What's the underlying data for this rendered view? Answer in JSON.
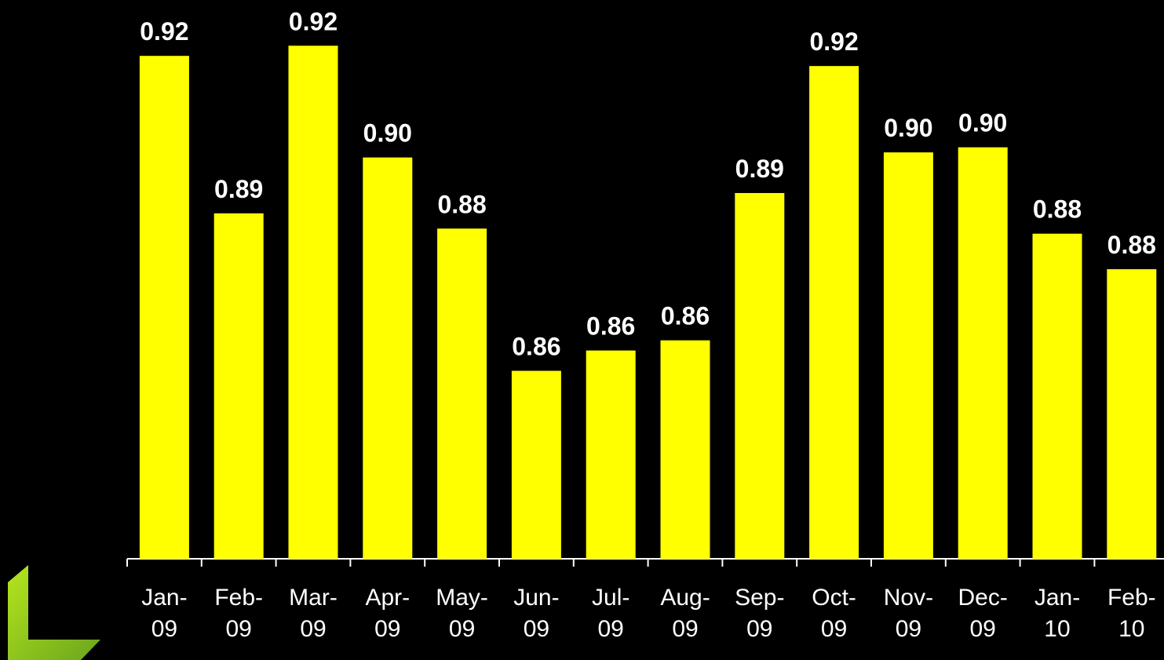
{
  "chart_data": {
    "type": "bar",
    "categories": [
      "Jan-09",
      "Feb-09",
      "Mar-09",
      "Apr-09",
      "May-09",
      "Jun-09",
      "Jul-09",
      "Aug-09",
      "Sep-09",
      "Oct-09",
      "Nov-09",
      "Dec-09",
      "Jan-10",
      "Feb-10"
    ],
    "values": [
      0.918,
      0.887,
      0.92,
      0.898,
      0.884,
      0.856,
      0.86,
      0.862,
      0.891,
      0.916,
      0.899,
      0.9,
      0.883,
      0.876
    ],
    "value_labels": [
      "0.92",
      "0.89",
      "0.92",
      "0.90",
      "0.88",
      "0.86",
      "0.86",
      "0.86",
      "0.89",
      "0.92",
      "0.90",
      "0.90",
      "0.88",
      "0.88"
    ],
    "color": "#ffff00",
    "ylim": [
      0.819,
      0.929
    ]
  }
}
